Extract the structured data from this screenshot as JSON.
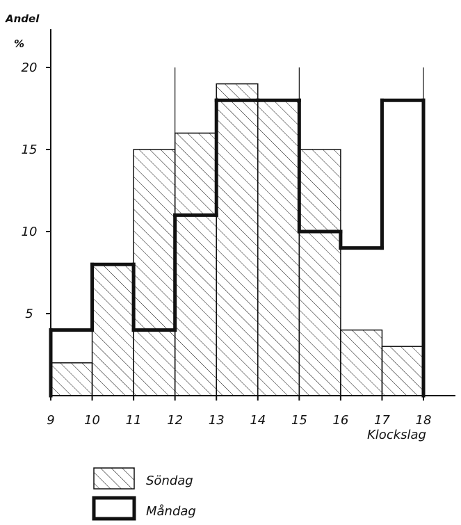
{
  "chart_data": {
    "type": "bar",
    "title": "",
    "xlabel": "Klockslag",
    "ylabel": "Andel",
    "yunit": "%",
    "ylim": [
      0,
      20
    ],
    "xlim": [
      9,
      18
    ],
    "grid": "vertical lines at 12, 15 and 18",
    "legend_position": "bottom",
    "x_ticks": [
      "9",
      "10",
      "11",
      "12",
      "13",
      "14",
      "15",
      "16",
      "17",
      "18"
    ],
    "y_ticks": [
      "5",
      "10",
      "15",
      "20"
    ],
    "bin_edges": [
      9,
      10,
      11,
      12,
      13,
      14,
      15,
      16,
      17,
      18
    ],
    "series": [
      {
        "name": "Söndag",
        "style": "hatched",
        "values": [
          2,
          8,
          15,
          16,
          19,
          18,
          15,
          4,
          3
        ]
      },
      {
        "name": "Måndag",
        "style": "outline",
        "values": [
          4,
          8,
          4,
          11,
          18,
          18,
          10,
          9,
          18
        ]
      }
    ]
  },
  "colors": {
    "ink": "#111111",
    "background": "#ffffff"
  }
}
